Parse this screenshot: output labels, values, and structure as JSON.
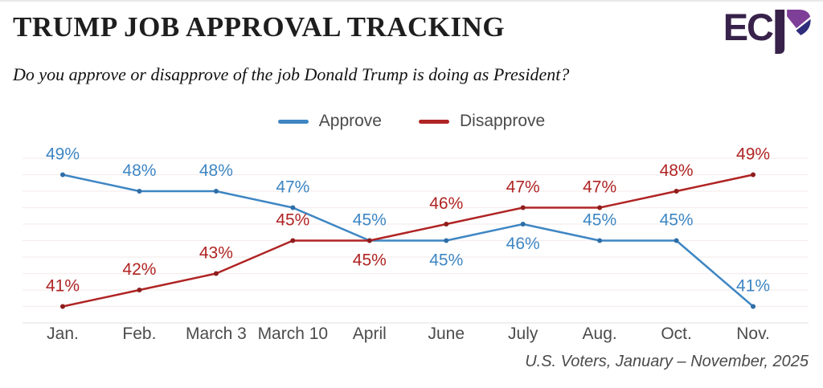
{
  "chart_data": {
    "type": "line",
    "title": "TRUMP JOB APPROVAL TRACKING",
    "subtitle": "Do you approve or disapprove of the job Donald Trump is doing as President?",
    "source_note": "U.S. Voters, January – November, 2025",
    "categories": [
      "Jan.",
      "Feb.",
      "March 3",
      "March 10",
      "April",
      "June",
      "July",
      "Aug.",
      "Oct.",
      "Nov."
    ],
    "series": [
      {
        "name": "Approve",
        "color": "#3e86c3",
        "point_color": "#2f6ea6",
        "values": [
          49,
          48,
          48,
          47,
          45,
          45,
          46,
          45,
          45,
          41
        ],
        "label_positions": [
          "above",
          "above",
          "above",
          "above",
          "above",
          "below",
          "below",
          "above",
          "above",
          "above"
        ]
      },
      {
        "name": "Disapprove",
        "color": "#b02424",
        "point_color": "#8f1d1d",
        "values": [
          41,
          42,
          43,
          45,
          45,
          46,
          47,
          47,
          48,
          49
        ],
        "label_positions": [
          "above",
          "above",
          "above",
          "above",
          "below",
          "above",
          "above",
          "above",
          "above",
          "above"
        ]
      }
    ],
    "ylim": [
      40,
      50
    ],
    "grid": true,
    "gridline_step": 1,
    "value_suffix": "%",
    "legend_position": "top",
    "colors": {
      "grid": "#f7eded",
      "axis": "#e8e8e8",
      "tick_label": "#4c4c4c"
    }
  },
  "logo": {
    "text": "EC",
    "mark": "segmented-p-mark",
    "colors": {
      "dark": "#38224a",
      "purple": "#7d3f97",
      "navy": "#2e2d7c"
    }
  }
}
